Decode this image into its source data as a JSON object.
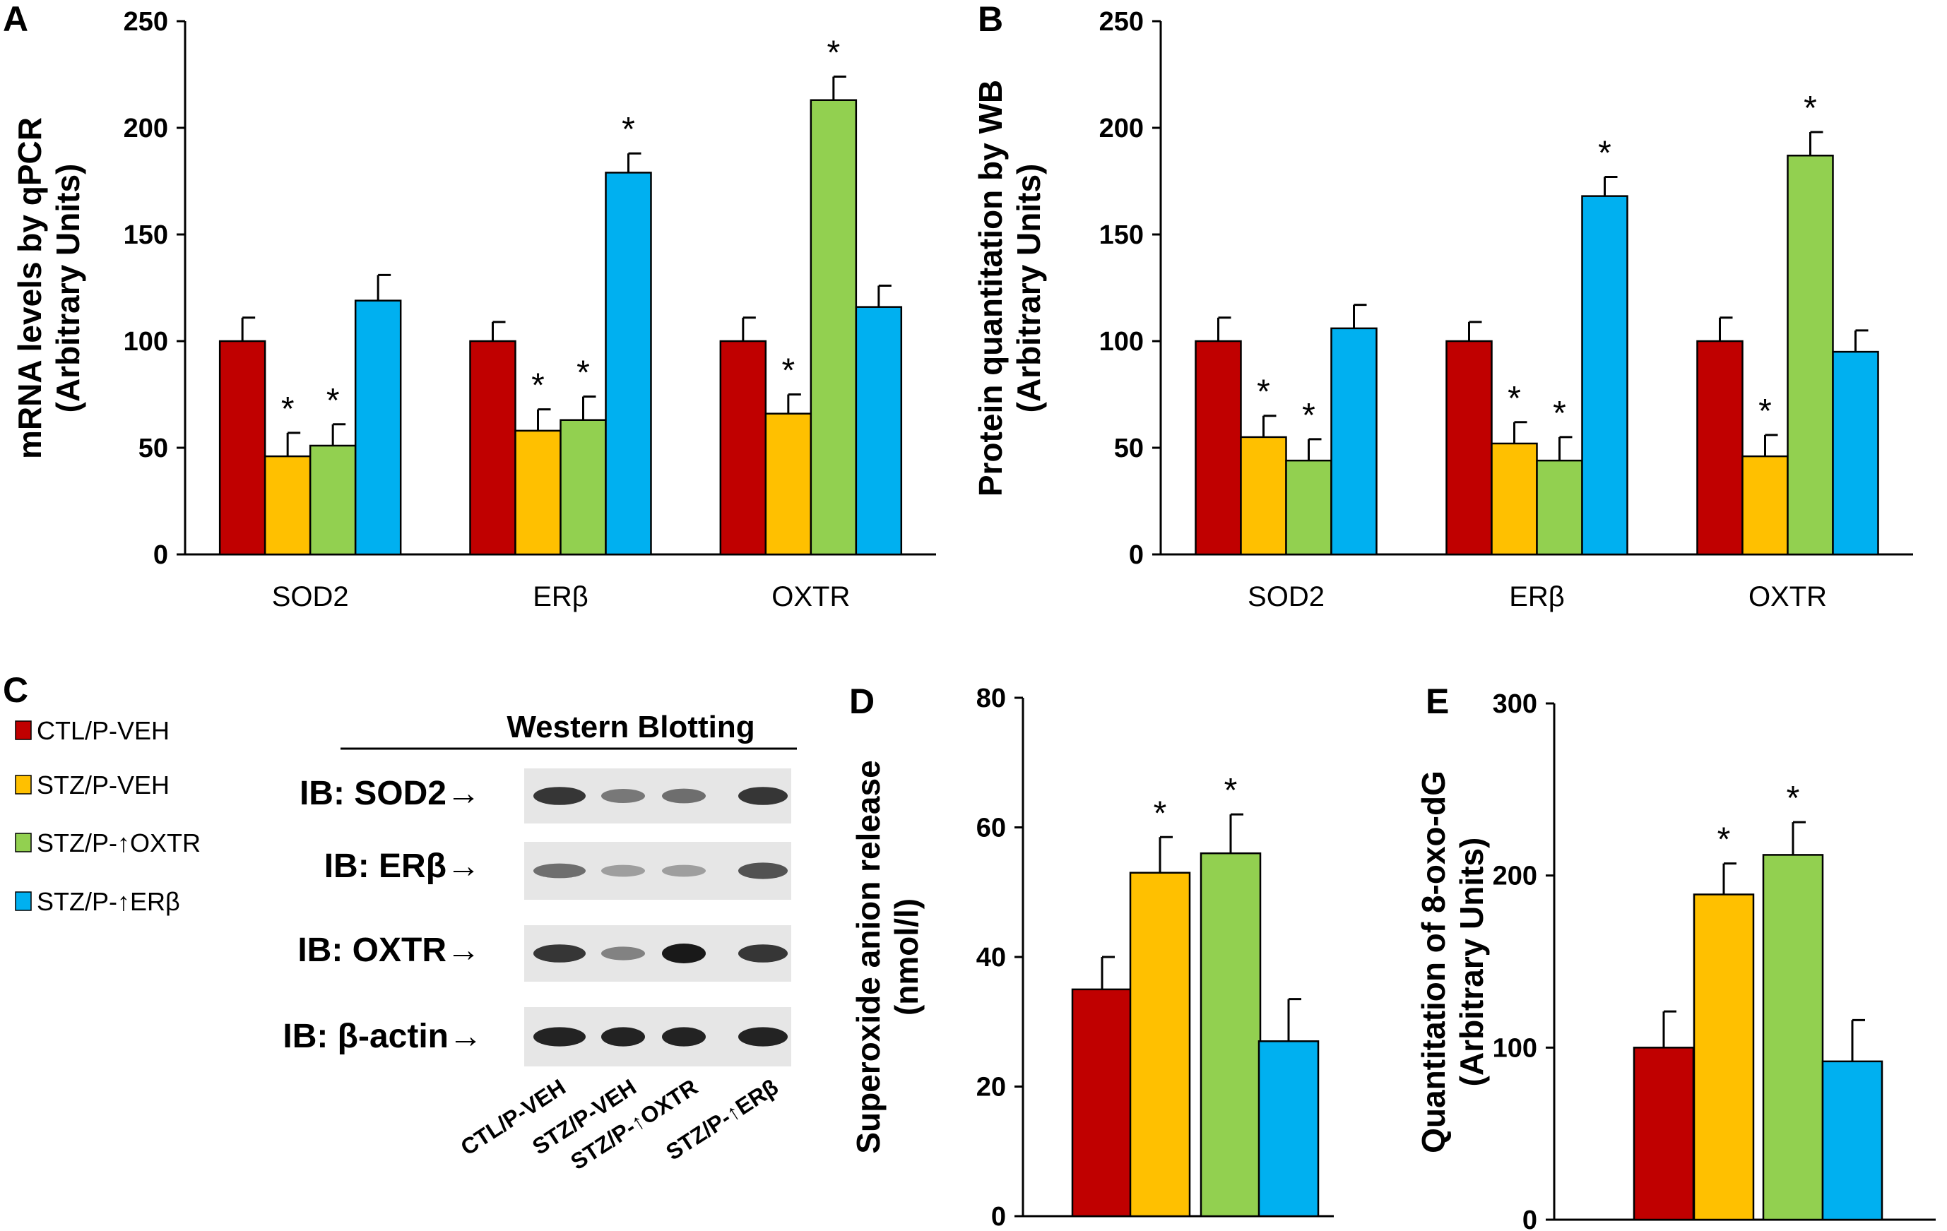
{
  "colors": {
    "CTL/P-VEH": "#c00000",
    "STZ/P-VEH": "#ffc000",
    "STZ/P-↑OXTR": "#92d050",
    "STZ/P-↑ERβ": "#00b0f0"
  },
  "legend": {
    "items": [
      {
        "label": "CTL/P-VEH",
        "color": "#c00000"
      },
      {
        "label": "STZ/P-VEH",
        "color": "#ffc000"
      },
      {
        "label": "STZ/P-↑OXTR",
        "color": "#92d050"
      },
      {
        "label": "STZ/P-↑ERβ",
        "color": "#00b0f0"
      }
    ]
  },
  "chart_data": [
    {
      "panel": "A",
      "type": "bar",
      "title": "",
      "ylabel": "mRNA levels by qPCR\n(Arbitrary Units)",
      "xlabel": "",
      "ylim": [
        0,
        250
      ],
      "yticks": [
        0,
        50,
        100,
        150,
        200,
        250
      ],
      "categories": [
        "SOD2",
        "ERβ",
        "OXTR"
      ],
      "series": [
        {
          "name": "CTL/P-VEH",
          "values": [
            100,
            100,
            100
          ],
          "errors": [
            11,
            9,
            11
          ],
          "significant": [
            false,
            false,
            false
          ]
        },
        {
          "name": "STZ/P-VEH",
          "values": [
            46,
            58,
            66
          ],
          "errors": [
            11,
            10,
            9
          ],
          "significant": [
            true,
            true,
            true
          ]
        },
        {
          "name": "STZ/P-↑OXTR",
          "values": [
            51,
            63,
            213
          ],
          "errors": [
            10,
            11,
            11
          ],
          "significant": [
            true,
            true,
            true
          ]
        },
        {
          "name": "STZ/P-↑ERβ",
          "values": [
            119,
            179,
            116
          ],
          "errors": [
            12,
            9,
            10
          ],
          "significant": [
            false,
            true,
            false
          ]
        }
      ]
    },
    {
      "panel": "B",
      "type": "bar",
      "title": "",
      "ylabel": "Protein quantitation by WB\n(Arbitrary Units)",
      "xlabel": "",
      "ylim": [
        0,
        250
      ],
      "yticks": [
        0,
        50,
        100,
        150,
        200,
        250
      ],
      "categories": [
        "SOD2",
        "ERβ",
        "OXTR"
      ],
      "series": [
        {
          "name": "CTL/P-VEH",
          "values": [
            100,
            100,
            100
          ],
          "errors": [
            11,
            9,
            11
          ],
          "significant": [
            false,
            false,
            false
          ]
        },
        {
          "name": "STZ/P-VEH",
          "values": [
            55,
            52,
            46
          ],
          "errors": [
            10,
            10,
            10
          ],
          "significant": [
            true,
            true,
            true
          ]
        },
        {
          "name": "STZ/P-↑OXTR",
          "values": [
            44,
            44,
            187
          ],
          "errors": [
            10,
            11,
            11
          ],
          "significant": [
            true,
            true,
            true
          ]
        },
        {
          "name": "STZ/P-↑ERβ",
          "values": [
            106,
            168,
            95
          ],
          "errors": [
            11,
            9,
            10
          ],
          "significant": [
            false,
            true,
            false
          ]
        }
      ]
    },
    {
      "panel": "D",
      "type": "bar",
      "title": "",
      "ylabel": "Superoxide anion release\n(nmol/l)",
      "xlabel": "",
      "ylim": [
        0,
        80
      ],
      "yticks": [
        0,
        20,
        40,
        60,
        80
      ],
      "categories": [
        "CTL/P-VEH",
        "STZ/P-VEH",
        "STZ/P-↑OXTR",
        "STZ/P-↑ERβ"
      ],
      "series": [
        {
          "name": "Superoxide",
          "values": [
            35,
            53,
            56,
            27
          ],
          "errors": [
            5,
            5.5,
            6,
            6.5
          ],
          "significant": [
            false,
            true,
            true,
            false
          ]
        }
      ]
    },
    {
      "panel": "E",
      "type": "bar",
      "title": "",
      "ylabel": "Quantitation of 8-oxo-dG\n(Arbitrary Units)",
      "xlabel": "",
      "ylim": [
        0,
        300
      ],
      "yticks": [
        0,
        100,
        200,
        300
      ],
      "categories": [
        "CTL/P-VEH",
        "STZ/P-VEH",
        "STZ/P-↑OXTR",
        "STZ/P-↑ERβ"
      ],
      "series": [
        {
          "name": "8-oxo-dG",
          "values": [
            100,
            189,
            212,
            92
          ],
          "errors": [
            21,
            18,
            19,
            24
          ],
          "significant": [
            false,
            true,
            true,
            false
          ]
        }
      ]
    }
  ],
  "western_blot": {
    "panel": "C",
    "title": "Western Blotting",
    "rows": [
      {
        "label": "IB: SOD2→",
        "intensities": [
          0.85,
          0.5,
          0.55,
          0.85
        ]
      },
      {
        "label": "IB: ERβ→",
        "intensities": [
          0.55,
          0.3,
          0.3,
          0.7
        ]
      },
      {
        "label": "IB: OXTR→",
        "intensities": [
          0.85,
          0.45,
          1.0,
          0.85
        ]
      },
      {
        "label": "IB: β-actin→",
        "intensities": [
          0.95,
          0.95,
          0.95,
          0.95
        ]
      }
    ],
    "lanes": [
      "CTL/P-VEH",
      "STZ/P-VEH",
      "STZ/P-↑OXTR",
      "STZ/P-↑ERβ"
    ]
  },
  "significance_marker": "*"
}
